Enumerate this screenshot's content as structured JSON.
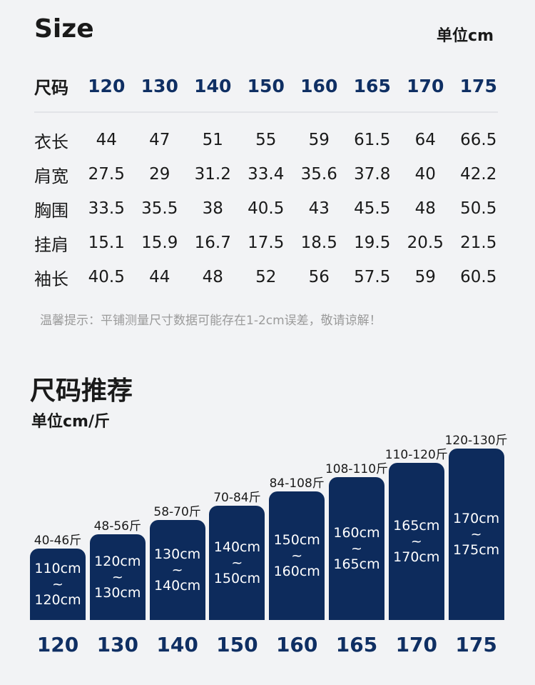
{
  "size_chart": {
    "title": "Size",
    "unit": "单位cm",
    "header_label": "尺码",
    "sizes": [
      "120",
      "130",
      "140",
      "150",
      "160",
      "165",
      "170",
      "175"
    ],
    "rows": [
      {
        "label": "衣长",
        "values": [
          "44",
          "47",
          "51",
          "55",
          "59",
          "61.5",
          "64",
          "66.5"
        ]
      },
      {
        "label": "肩宽",
        "values": [
          "27.5",
          "29",
          "31.2",
          "33.4",
          "35.6",
          "37.8",
          "40",
          "42.2"
        ]
      },
      {
        "label": "胸围",
        "values": [
          "33.5",
          "35.5",
          "38",
          "40.5",
          "43",
          "45.5",
          "48",
          "50.5"
        ]
      },
      {
        "label": "挂肩",
        "values": [
          "15.1",
          "15.9",
          "16.7",
          "17.5",
          "18.5",
          "19.5",
          "20.5",
          "21.5"
        ]
      },
      {
        "label": "袖长",
        "values": [
          "40.5",
          "44",
          "48",
          "52",
          "56",
          "57.5",
          "59",
          "60.5"
        ]
      }
    ],
    "note": "温馨提示：平铺测量尺寸数据可能存在1-2cm误差，敬请谅解！"
  },
  "recommendation": {
    "title": "尺码推荐",
    "unit": "单位cm/斤"
  },
  "chart_data": {
    "type": "bar",
    "categories": [
      "120",
      "130",
      "140",
      "150",
      "160",
      "165",
      "170",
      "175"
    ],
    "series": [
      {
        "values": [
          1,
          2,
          3,
          4,
          5,
          6,
          7,
          8
        ]
      }
    ],
    "weights": [
      "40-46斤",
      "48-56斤",
      "58-70斤",
      "70-84斤",
      "84-108斤",
      "108-110斤",
      "110-120斤",
      "120-130斤"
    ],
    "heights": [
      "110cm\n~\n120cm",
      "120cm\n~\n130cm",
      "130cm\n~\n140cm",
      "140cm\n~\n150cm",
      "150cm\n~\n160cm",
      "160cm\n~\n165cm",
      "165cm\n~\n170cm",
      "170cm\n~\n175cm"
    ],
    "bar_color": "#0d2b5c",
    "label_color": "#0f2f63"
  }
}
